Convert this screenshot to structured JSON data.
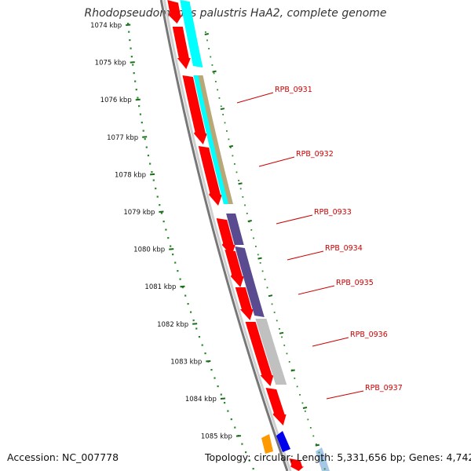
{
  "title": "Rhodopseudomonas palustris HaA2, complete genome",
  "accession_text": "Accession: NC_007778",
  "summary_text": "Topology: circular; Length: 5,331,656 bp; Genes: 4,742",
  "colors": {
    "cds": "#ff0000",
    "backbone": "#888888",
    "scale": "#2a8a2a",
    "tick": "#1a6e1a",
    "label": "#cc0000",
    "cyan": "#00ffff",
    "olive": "#b8a878",
    "purple": "#5a4a90",
    "grey": "#c0c0c0",
    "blue": "#0000ee",
    "orange": "#ff9900",
    "lightblue": "#a6c8e8"
  },
  "scale_ticks": [
    {
      "label": "1074 kbp"
    },
    {
      "label": "1075 kbp"
    },
    {
      "label": "1076 kbp"
    },
    {
      "label": "1077 kbp"
    },
    {
      "label": "1078 kbp"
    },
    {
      "label": "1079 kbp"
    },
    {
      "label": "1080 kbp"
    },
    {
      "label": "1081 kbp"
    },
    {
      "label": "1082 kbp"
    },
    {
      "label": "1083 kbp"
    },
    {
      "label": "1084 kbp"
    },
    {
      "label": "1085 kbp"
    }
  ],
  "gene_labels": [
    {
      "label": "RPB_0931"
    },
    {
      "label": "RPB_0932"
    },
    {
      "label": "RPB_0933"
    },
    {
      "label": "RPB_0934"
    },
    {
      "label": "RPB_0935"
    },
    {
      "label": "RPB_0936"
    },
    {
      "label": "RPB_0937"
    }
  ]
}
